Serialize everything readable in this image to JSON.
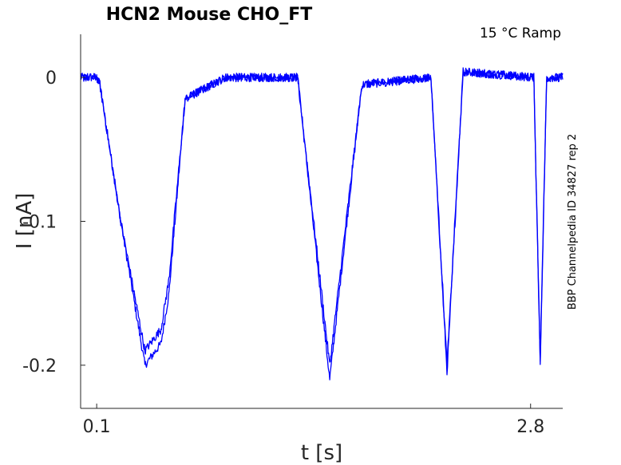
{
  "chart_data": {
    "type": "line",
    "title": "HCN2  Mouse  CHO_FT",
    "annotation": "15 °C  Ramp",
    "side_label": "BBP Channelpedia ID 34827 rep 2",
    "xlabel": "t [s]",
    "ylabel": "I [nA]",
    "xlim": [
      0.0,
      3.0
    ],
    "ylim": [
      -0.23,
      0.03
    ],
    "x_ticks": [
      {
        "value": 0.1,
        "label": "0.1"
      },
      {
        "value": 2.8,
        "label": "2.8"
      }
    ],
    "y_ticks": [
      {
        "value": 0,
        "label": "0"
      },
      {
        "value": -0.1,
        "label": "-0.1"
      },
      {
        "value": -0.2,
        "label": "-0.2"
      }
    ],
    "grid": false,
    "series_color": "#0000ff",
    "series": [
      {
        "x": [
          0.0,
          0.1,
          0.12,
          0.25,
          0.4,
          0.5,
          0.55,
          0.65,
          0.9,
          1.35,
          1.55,
          1.75,
          2.18,
          2.28,
          2.38,
          2.82,
          2.86,
          2.9,
          3.0
        ],
        "y": [
          0.0,
          0.0,
          -0.005,
          -0.1,
          -0.2,
          -0.185,
          -0.15,
          -0.015,
          0.0,
          0.0,
          -0.21,
          -0.005,
          0.0,
          -0.205,
          0.004,
          0.0,
          -0.2,
          0.0,
          0.0
        ],
        "noise": 0.003
      },
      {
        "x": [
          0.0,
          0.1,
          0.12,
          0.25,
          0.4,
          0.5,
          0.55,
          0.65,
          0.9,
          1.35,
          1.55,
          1.75,
          2.18,
          2.28,
          2.38,
          2.82,
          2.86,
          2.9,
          3.0
        ],
        "y": [
          0.0,
          0.0,
          -0.005,
          -0.1,
          -0.19,
          -0.175,
          -0.14,
          -0.015,
          0.0,
          0.0,
          -0.2,
          -0.005,
          0.0,
          -0.2,
          0.004,
          0.0,
          -0.195,
          0.0,
          0.0
        ],
        "noise": 0.003
      }
    ]
  }
}
